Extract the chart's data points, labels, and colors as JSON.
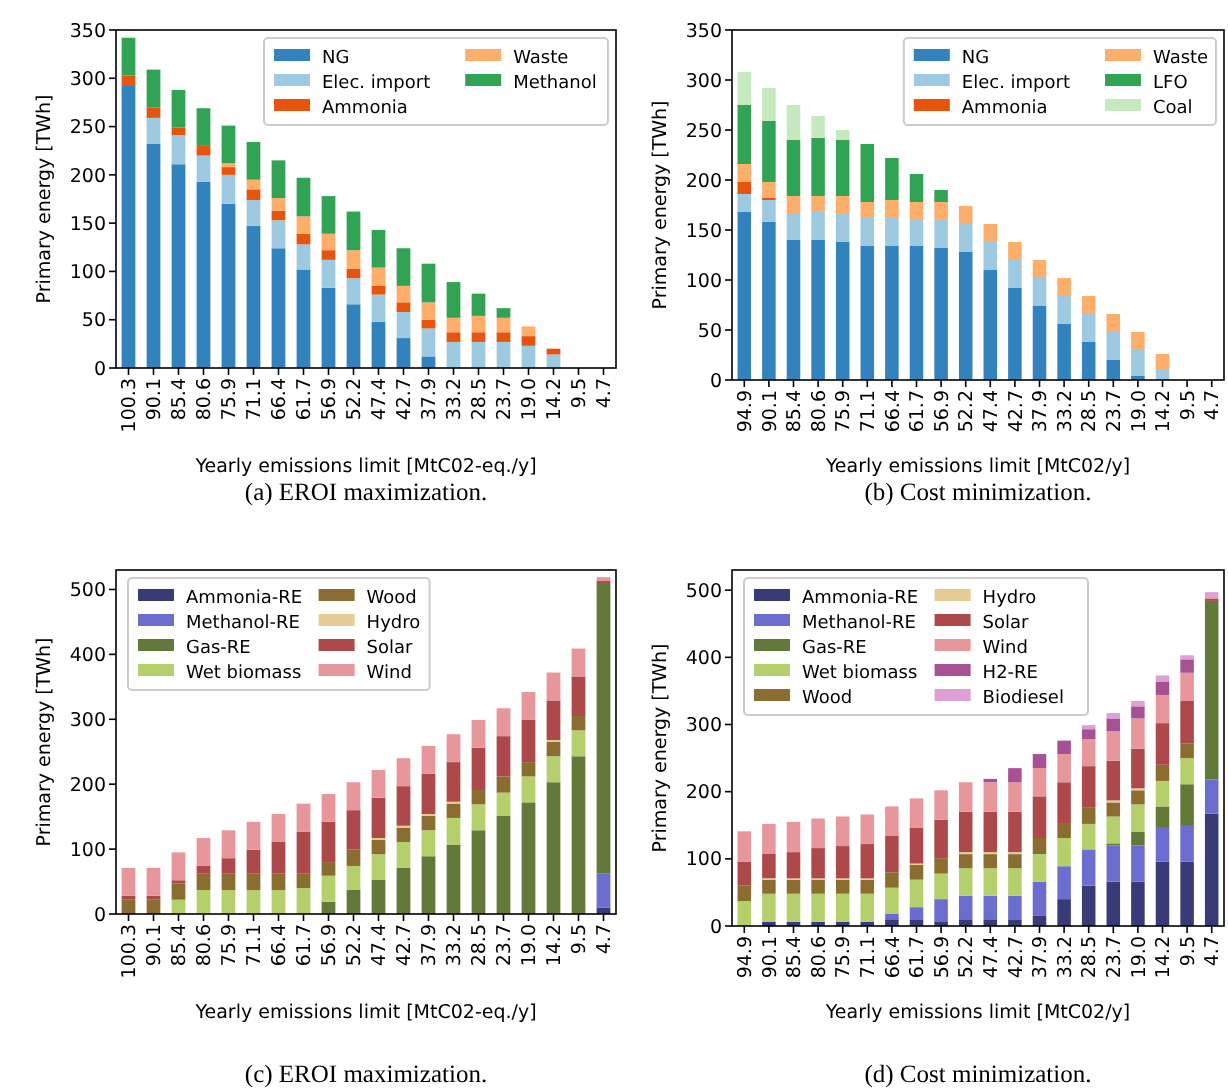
{
  "chart_data": [
    {
      "type": "bar",
      "stacked": true,
      "xlabel": "Yearly emissions limit [MtC02-eq./y]",
      "ylabel": "Primary energy [TWh]",
      "annotations": [
        "(a) EROI maximization."
      ],
      "legend": "top right",
      "ylim": [
        0,
        350
      ],
      "yticks": [
        0,
        50,
        100,
        150,
        200,
        250,
        300,
        350
      ],
      "categories": [
        "100.3",
        "90.1",
        "85.4",
        "80.6",
        "75.9",
        "71.1",
        "66.4",
        "61.7",
        "56.9",
        "52.2",
        "47.4",
        "42.7",
        "37.9",
        "33.2",
        "28.5",
        "23.7",
        "19.0",
        "14.2",
        "9.5",
        "4.7"
      ],
      "series": [
        {
          "name": "NG",
          "color": "#3182bd",
          "values": [
            292,
            232,
            211,
            193,
            170,
            147,
            124,
            102,
            83,
            66,
            48,
            31,
            12,
            0,
            0,
            0,
            0,
            0,
            0,
            0
          ]
        },
        {
          "name": "Elec. import",
          "color": "#9ecae1",
          "values": [
            0,
            27,
            30,
            27,
            30,
            27,
            29,
            26,
            29,
            27,
            28,
            27,
            29,
            27,
            27,
            27,
            23,
            14,
            0,
            0
          ]
        },
        {
          "name": "Ammonia",
          "color": "#e6550d",
          "values": [
            11,
            11,
            8,
            10,
            8,
            11,
            10,
            11,
            10,
            10,
            9,
            10,
            9,
            10,
            10,
            10,
            10,
            6,
            0,
            0
          ]
        },
        {
          "name": "Waste",
          "color": "#fdae6b",
          "values": [
            0,
            0,
            0,
            0,
            4,
            10,
            13,
            18,
            17,
            19,
            19,
            17,
            18,
            15,
            17,
            15,
            10,
            0,
            0,
            0
          ]
        },
        {
          "name": "Methanol",
          "color": "#31a354",
          "values": [
            39,
            39,
            39,
            39,
            39,
            39,
            39,
            40,
            39,
            40,
            39,
            39,
            40,
            37,
            23,
            10,
            0,
            0,
            null,
            null
          ]
        }
      ]
    },
    {
      "type": "bar",
      "stacked": true,
      "xlabel": "Yearly emissions limit [MtC02/y]",
      "ylabel": "Primary energy [TWh]",
      "annotations": [
        "(b) Cost minimization."
      ],
      "legend": "top right",
      "ylim": [
        0,
        350
      ],
      "yticks": [
        0,
        50,
        100,
        150,
        200,
        250,
        300,
        350
      ],
      "categories": [
        "94.9",
        "90.1",
        "85.4",
        "80.6",
        "75.9",
        "71.1",
        "66.4",
        "61.7",
        "56.9",
        "52.2",
        "47.4",
        "42.7",
        "37.9",
        "33.2",
        "28.5",
        "23.7",
        "19.0",
        "14.2",
        "9.5",
        "4.7"
      ],
      "series": [
        {
          "name": "NG",
          "color": "#3182bd",
          "values": [
            168,
            158,
            140,
            140,
            138,
            134,
            134,
            134,
            132,
            128,
            110,
            92,
            74,
            56,
            38,
            20,
            4,
            0,
            0,
            0
          ]
        },
        {
          "name": "Elec. import",
          "color": "#9ecae1",
          "values": [
            18,
            22,
            26,
            28,
            28,
            28,
            28,
            27,
            29,
            29,
            28,
            29,
            28,
            28,
            28,
            28,
            26,
            10,
            0,
            0
          ]
        },
        {
          "name": "Ammonia",
          "color": "#e6550d",
          "values": [
            12,
            2,
            0,
            0,
            0,
            0,
            0,
            0,
            0,
            0,
            0,
            0,
            0,
            0,
            0,
            0,
            0,
            0,
            0,
            0
          ]
        },
        {
          "name": "Waste",
          "color": "#fdae6b",
          "values": [
            18,
            16,
            18,
            16,
            18,
            16,
            18,
            17,
            17,
            17,
            18,
            17,
            18,
            18,
            18,
            18,
            18,
            16,
            0,
            0
          ]
        },
        {
          "name": "LFO",
          "color": "#31a354",
          "values": [
            59,
            61,
            56,
            58,
            56,
            58,
            42,
            28,
            12,
            0,
            0,
            0,
            0,
            0,
            0,
            0,
            0,
            0,
            0,
            0
          ]
        },
        {
          "name": "Coal",
          "color": "#c7e9c0",
          "values": [
            33,
            33,
            35,
            22,
            10,
            0,
            0,
            0,
            0,
            0,
            0,
            0,
            0,
            0,
            0,
            0,
            0,
            0,
            0,
            0
          ]
        }
      ]
    },
    {
      "type": "bar",
      "stacked": true,
      "xlabel": "Yearly emissions limit [MtC02-eq./y]",
      "ylabel": "Primary energy [TWh]",
      "annotations": [
        "(c) EROI maximization."
      ],
      "legend": "top left",
      "ylim": [
        0,
        530
      ],
      "yticks": [
        0,
        100,
        200,
        300,
        400,
        500
      ],
      "categories": [
        "100.3",
        "90.1",
        "85.4",
        "80.6",
        "75.9",
        "71.1",
        "66.4",
        "61.7",
        "56.9",
        "52.2",
        "47.4",
        "42.7",
        "37.9",
        "33.2",
        "28.5",
        "23.7",
        "19.0",
        "14.2",
        "9.5",
        "4.7"
      ],
      "series": [
        {
          "name": "Ammonia-RE",
          "color": "#393b79",
          "values": [
            0,
            0,
            0,
            0,
            0,
            0,
            0,
            0,
            0,
            0,
            0,
            0,
            0,
            0,
            0,
            0,
            0,
            0,
            0,
            10
          ]
        },
        {
          "name": "Methanol-RE",
          "color": "#6b6ecf",
          "values": [
            0,
            0,
            0,
            0,
            0,
            0,
            0,
            0,
            0,
            0,
            0,
            0,
            0,
            0,
            0,
            0,
            0,
            0,
            0,
            52
          ]
        },
        {
          "name": "Gas-RE",
          "color": "#637939",
          "values": [
            0,
            0,
            0,
            0,
            0,
            0,
            0,
            0,
            19,
            37,
            53,
            71,
            89,
            107,
            129,
            151,
            172,
            203,
            243,
            448
          ]
        },
        {
          "name": "Wet biomass",
          "color": "#b5cf6b",
          "values": [
            0,
            0,
            22,
            37,
            37,
            37,
            37,
            40,
            40,
            37,
            39,
            40,
            40,
            41,
            40,
            36,
            40,
            40,
            40,
            0
          ]
        },
        {
          "name": "Wood",
          "color": "#8c6d31",
          "values": [
            22,
            22,
            25,
            25,
            25,
            25,
            25,
            22,
            21,
            25,
            22,
            22,
            22,
            22,
            22,
            25,
            22,
            22,
            22,
            0
          ]
        },
        {
          "name": "Hydro",
          "color": "#e7cb94",
          "values": [
            0,
            0,
            0,
            0,
            0,
            0,
            0,
            0,
            0,
            0,
            3,
            3,
            3,
            3,
            0,
            0,
            0,
            3,
            0,
            0
          ]
        },
        {
          "name": "Solar",
          "color": "#ad494a",
          "values": [
            6,
            6,
            5,
            12,
            24,
            37,
            49,
            65,
            62,
            61,
            62,
            61,
            62,
            61,
            65,
            62,
            65,
            61,
            61,
            3
          ]
        },
        {
          "name": "Wind",
          "color": "#e7969c",
          "values": [
            43,
            43,
            43,
            43,
            43,
            43,
            43,
            43,
            43,
            43,
            43,
            43,
            43,
            43,
            43,
            43,
            43,
            43,
            43,
            6
          ]
        }
      ]
    },
    {
      "type": "bar",
      "stacked": true,
      "xlabel": "Yearly emissions limit [MtC02/y]",
      "ylabel": "Primary energy [TWh]",
      "annotations": [
        "(d) Cost minimization."
      ],
      "legend": "top left",
      "ylim": [
        0,
        530
      ],
      "yticks": [
        0,
        100,
        200,
        300,
        400,
        500
      ],
      "categories": [
        "94.9",
        "90.1",
        "85.4",
        "80.6",
        "75.9",
        "71.1",
        "66.4",
        "61.7",
        "56.9",
        "52.2",
        "47.4",
        "42.7",
        "37.9",
        "33.2",
        "28.5",
        "23.7",
        "19.0",
        "14.2",
        "9.5",
        "4.7"
      ],
      "series": [
        {
          "name": "Ammonia-RE",
          "color": "#393b79",
          "values": [
            0,
            6,
            6,
            6,
            6,
            6,
            10,
            10,
            7,
            10,
            10,
            10,
            15,
            40,
            60,
            66,
            66,
            96,
            96,
            167
          ]
        },
        {
          "name": "Methanol-RE",
          "color": "#6b6ecf",
          "values": [
            0,
            0,
            0,
            0,
            0,
            0,
            8,
            18,
            33,
            35,
            35,
            35,
            51,
            49,
            54,
            54,
            54,
            50,
            53,
            51
          ]
        },
        {
          "name": "Gas-RE",
          "color": "#637939",
          "values": [
            0,
            0,
            0,
            0,
            0,
            0,
            0,
            0,
            0,
            0,
            0,
            0,
            0,
            0,
            0,
            3,
            20,
            32,
            62,
            266
          ]
        },
        {
          "name": "Wet biomass",
          "color": "#b5cf6b",
          "values": [
            37,
            42,
            42,
            42,
            42,
            42,
            39,
            41,
            38,
            41,
            41,
            41,
            41,
            42,
            38,
            40,
            41,
            38,
            39,
            0
          ]
        },
        {
          "name": "Wood",
          "color": "#8c6d31",
          "values": [
            23,
            21,
            21,
            21,
            21,
            21,
            23,
            22,
            23,
            21,
            21,
            21,
            24,
            21,
            24,
            21,
            21,
            24,
            22,
            0
          ]
        },
        {
          "name": "Hydro",
          "color": "#e7cb94",
          "values": [
            0,
            2,
            2,
            2,
            2,
            2,
            0,
            2,
            0,
            3,
            3,
            3,
            0,
            0,
            0,
            3,
            3,
            0,
            0,
            0
          ]
        },
        {
          "name": "Solar",
          "color": "#ad494a",
          "values": [
            36,
            37,
            39,
            45,
            48,
            51,
            54,
            53,
            57,
            60,
            60,
            60,
            62,
            62,
            62,
            59,
            59,
            62,
            63,
            3
          ]
        },
        {
          "name": "Wind",
          "color": "#e7969c",
          "values": [
            45,
            44,
            45,
            44,
            44,
            44,
            44,
            44,
            44,
            44,
            44,
            44,
            42,
            42,
            40,
            44,
            45,
            42,
            42,
            3
          ]
        },
        {
          "name": "H2-RE",
          "color": "#a55194",
          "values": [
            0,
            0,
            0,
            0,
            0,
            0,
            0,
            0,
            0,
            0,
            5,
            21,
            21,
            20,
            15,
            19,
            18,
            20,
            20,
            0
          ]
        },
        {
          "name": "Biodiesel",
          "color": "#de9ed6",
          "values": [
            0,
            0,
            0,
            0,
            0,
            0,
            0,
            0,
            0,
            0,
            0,
            0,
            0,
            0,
            6,
            8,
            8,
            9,
            6,
            7
          ]
        }
      ]
    }
  ]
}
